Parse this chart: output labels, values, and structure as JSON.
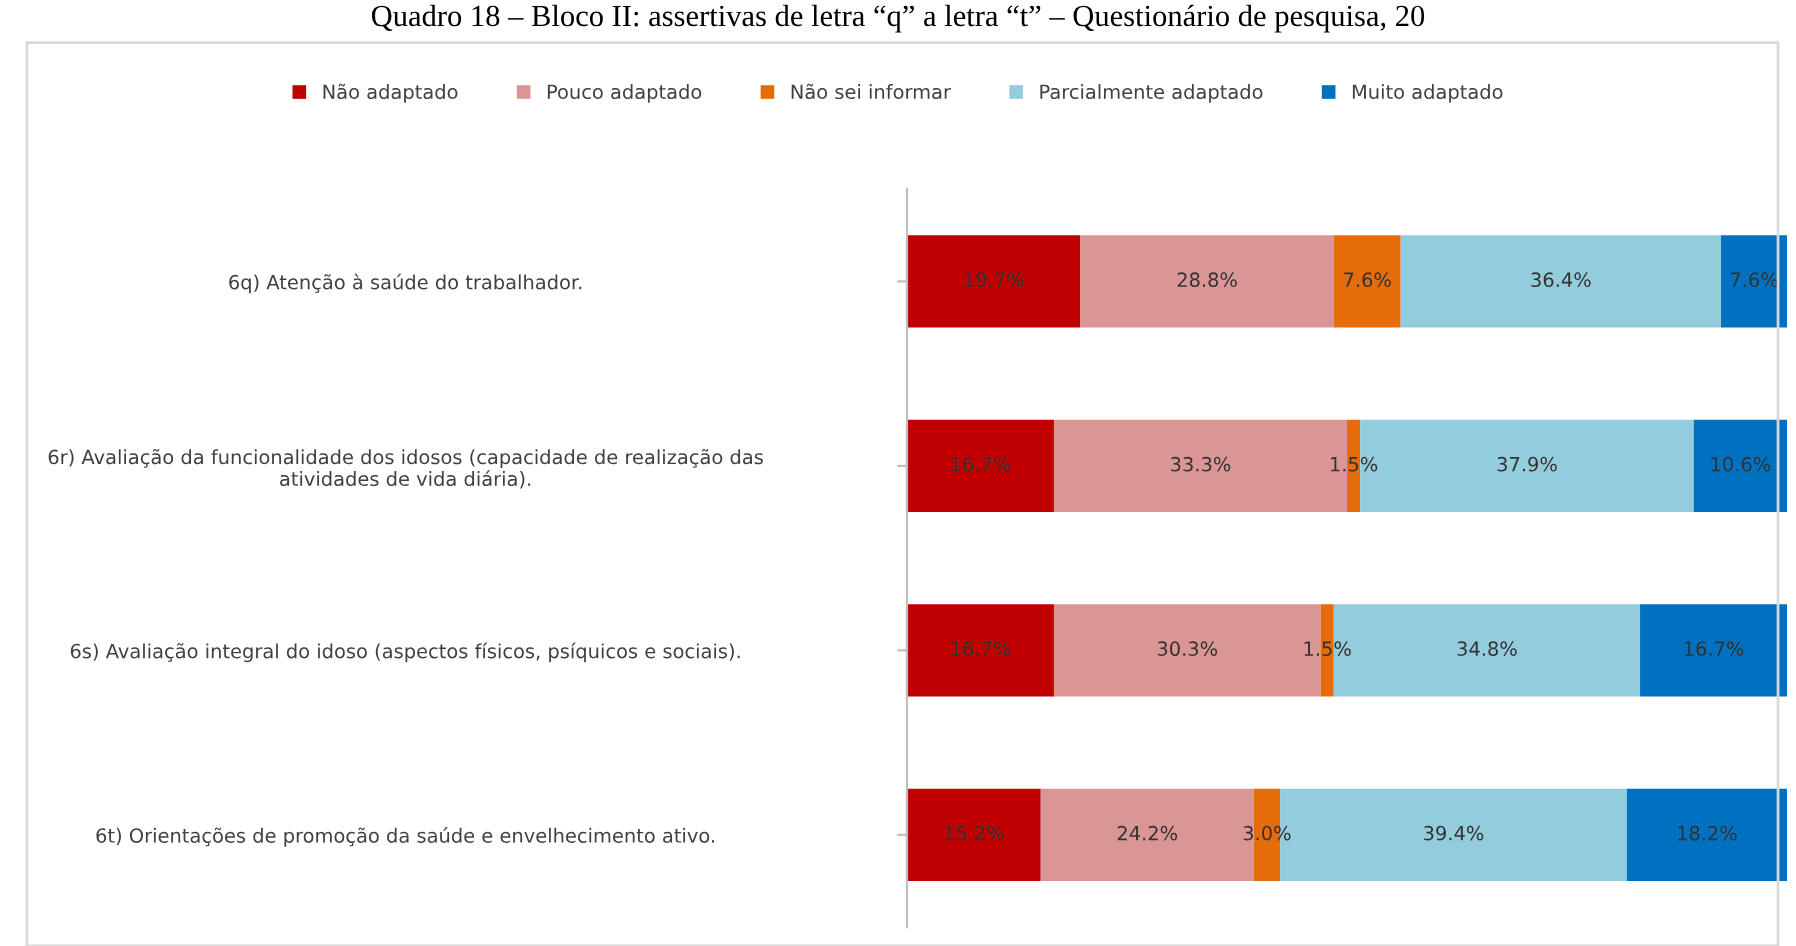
{
  "chart_data": {
    "type": "bar",
    "orientation": "horizontal",
    "stacked": true,
    "title": "Quadro 18 – Bloco II: assertivas de letra “q” a letra “t” – Questionário de pesquisa, 20",
    "categories": [
      "6q) Atenção à saúde do trabalhador.",
      "6r) Avaliação da funcionalidade dos idosos (capacidade de realização das atividades de vida diária).",
      "6s) Avaliação integral do idoso (aspectos físicos, psíquicos e sociais).",
      "6t) Orientações de promoção da saúde e envelhecimento ativo."
    ],
    "series": [
      {
        "name": "Não adaptado",
        "color": "#c00000",
        "values": [
          19.7,
          16.7,
          16.7,
          15.2
        ],
        "value_labels": [
          "19.7%",
          "16.7%",
          "16.7%",
          "15.2%"
        ]
      },
      {
        "name": "Pouco adaptado",
        "color": "#d99694",
        "values": [
          28.8,
          33.3,
          30.3,
          24.2
        ],
        "value_labels": [
          "28.8%",
          "33.3%",
          "30.3%",
          "24.2%"
        ]
      },
      {
        "name": "Não sei informar",
        "color": "#e46c0a",
        "values": [
          7.6,
          1.5,
          1.5,
          3.0
        ],
        "value_labels": [
          "7.6%",
          "1.5%",
          "1.5%",
          "3.0%"
        ]
      },
      {
        "name": "Parcialmente adaptado",
        "color": "#93cddd",
        "values": [
          36.4,
          37.9,
          34.8,
          39.4
        ],
        "value_labels": [
          "36.4%",
          "37.9%",
          "34.8%",
          "39.4%"
        ]
      },
      {
        "name": "Muito adaptado",
        "color": "#0070c0",
        "values": [
          7.6,
          10.6,
          16.7,
          18.2
        ],
        "value_labels": [
          "7.6%",
          "10.6%",
          "16.7%",
          "18.2%"
        ]
      }
    ],
    "xlim": [
      0,
      100
    ],
    "tick_labels": "y",
    "grid": false,
    "legend": "top"
  }
}
